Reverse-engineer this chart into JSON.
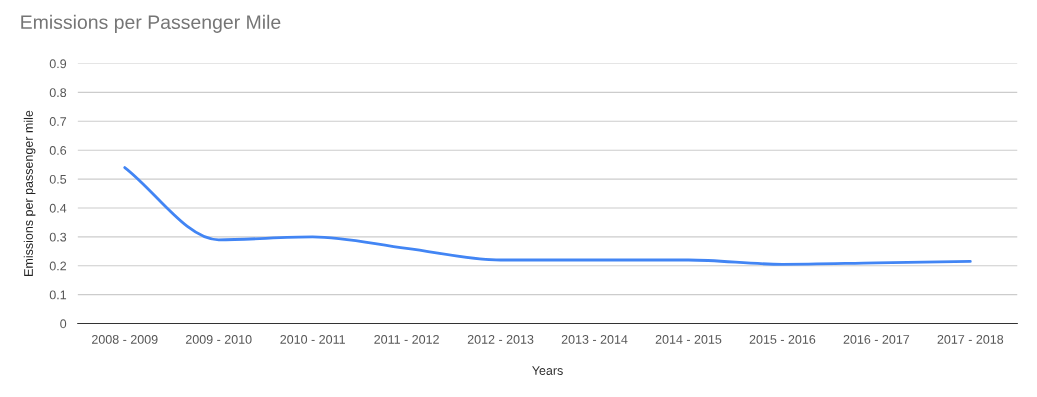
{
  "chart_data": {
    "type": "line",
    "title": "Emissions per Passenger Mile",
    "xlabel": "Years",
    "ylabel": "Emissions per passenger mile",
    "categories": [
      "2008 - 2009",
      "2009 - 2010",
      "2010 - 2011",
      "2011 - 2012",
      "2012 - 2013",
      "2013 - 2014",
      "2014 - 2015",
      "2015 - 2016",
      "2016 - 2017",
      "2017 - 2018"
    ],
    "series": [
      {
        "color": "#4285f4",
        "values": [
          0.54,
          0.29,
          0.3,
          0.26,
          0.22,
          0.22,
          0.22,
          0.205,
          0.21,
          0.215
        ]
      }
    ],
    "ylim": [
      0,
      0.9
    ],
    "yticks": [
      0,
      0.1,
      0.2,
      0.3,
      0.4,
      0.5,
      0.6,
      0.7,
      0.8,
      0.9
    ],
    "grid": "y"
  }
}
